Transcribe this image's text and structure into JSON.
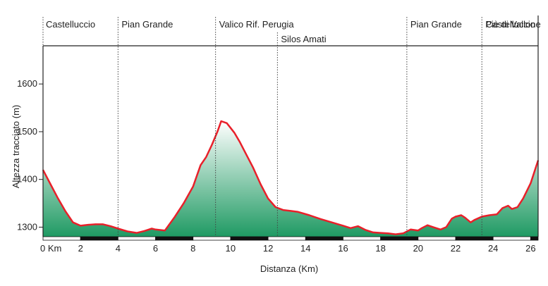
{
  "chart_data": {
    "type": "area",
    "title": "",
    "xlabel": "Distanza (Km)",
    "ylabel": "Altezza tracciato (m)",
    "xlim": [
      0,
      26.4
    ],
    "ylim": [
      1280,
      1680
    ],
    "x_ticks": [
      {
        "value": 0,
        "label": "0 Km"
      },
      {
        "value": 2,
        "label": "2"
      },
      {
        "value": 4,
        "label": "4"
      },
      {
        "value": 6,
        "label": "6"
      },
      {
        "value": 8,
        "label": "8"
      },
      {
        "value": 10,
        "label": "10"
      },
      {
        "value": 12,
        "label": "12"
      },
      {
        "value": 14,
        "label": "14"
      },
      {
        "value": 16,
        "label": "16"
      },
      {
        "value": 18,
        "label": "18"
      },
      {
        "value": 20,
        "label": "20"
      },
      {
        "value": 22,
        "label": "22"
      },
      {
        "value": 24,
        "label": "24"
      },
      {
        "value": 26,
        "label": "26"
      }
    ],
    "y_ticks": [
      {
        "value": 1300,
        "label": "1300"
      },
      {
        "value": 1400,
        "label": "1400"
      },
      {
        "value": 1500,
        "label": "1500"
      },
      {
        "value": 1600,
        "label": "1600"
      }
    ],
    "waypoints": [
      {
        "km": 0,
        "name": "Castelluccio",
        "row": 0
      },
      {
        "km": 4,
        "name": "Pian Grande",
        "row": 0
      },
      {
        "km": 9.2,
        "name": "Valico Rif. Perugia",
        "row": 0
      },
      {
        "km": 12.5,
        "name": "Silos Amati",
        "row": 1
      },
      {
        "km": 19.4,
        "name": "Pian Grande",
        "row": 0
      },
      {
        "km": 23.4,
        "name": "Piè di Vallone",
        "row": 0
      },
      {
        "km": 26.4,
        "name": "Castelluccio",
        "row": 0
      }
    ],
    "series": [
      {
        "x": [
          0,
          0.4,
          0.8,
          1.2,
          1.6,
          2.0,
          2.4,
          2.8,
          3.2,
          3.6,
          4.0,
          4.5,
          5.0,
          5.4,
          5.8,
          6.0,
          6.5,
          7.0,
          7.5,
          8.0,
          8.4,
          8.7,
          9.0,
          9.3,
          9.5,
          9.8,
          10.2,
          10.5,
          10.8,
          11.2,
          11.6,
          12.0,
          12.4,
          12.8,
          13.2,
          13.6,
          14.2,
          14.8,
          15.4,
          16.0,
          16.4,
          16.8,
          17.2,
          17.6,
          18.0,
          18.4,
          18.8,
          19.2,
          19.6,
          20.0,
          20.2,
          20.5,
          20.8,
          21.2,
          21.5,
          21.8,
          22.0,
          22.3,
          22.5,
          22.8,
          23.0,
          23.4,
          23.8,
          24.2,
          24.5,
          24.8,
          25.0,
          25.3,
          25.6,
          26.0,
          26.4
        ],
        "y": [
          1420,
          1390,
          1360,
          1333,
          1310,
          1303,
          1305,
          1306,
          1306,
          1302,
          1297,
          1291,
          1288,
          1292,
          1297,
          1295,
          1293,
          1320,
          1350,
          1385,
          1430,
          1447,
          1472,
          1500,
          1522,
          1518,
          1498,
          1478,
          1455,
          1425,
          1390,
          1360,
          1342,
          1336,
          1334,
          1332,
          1325,
          1317,
          1310,
          1303,
          1298,
          1302,
          1294,
          1289,
          1288,
          1287,
          1285,
          1287,
          1295,
          1293,
          1298,
          1304,
          1300,
          1295,
          1300,
          1318,
          1322,
          1325,
          1320,
          1310,
          1315,
          1322,
          1325,
          1327,
          1340,
          1345,
          1338,
          1342,
          1360,
          1392,
          1440
        ]
      }
    ],
    "colors": {
      "line": "#e8202a",
      "fill_top": "#ffffff",
      "fill_bottom": "#1f9a63",
      "axis_bar_dark": "#111111",
      "axis_bar_light": "#ffffff",
      "gridline": "#444444"
    },
    "grid": false
  }
}
